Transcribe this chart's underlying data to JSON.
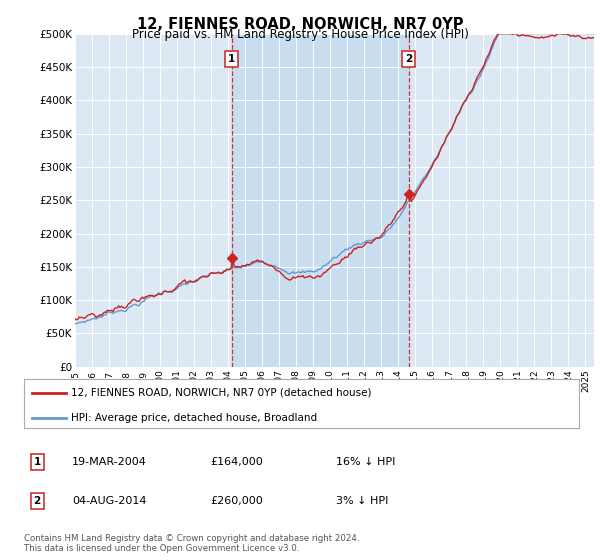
{
  "title": "12, FIENNES ROAD, NORWICH, NR7 0YP",
  "subtitle": "Price paid vs. HM Land Registry's House Price Index (HPI)",
  "plot_bg_color": "#dce9f5",
  "highlight_bg_color": "#c8ddf0",
  "ylim": [
    0,
    500000
  ],
  "yticks": [
    0,
    50000,
    100000,
    150000,
    200000,
    250000,
    300000,
    350000,
    400000,
    450000,
    500000
  ],
  "ytick_labels": [
    "£0",
    "£50K",
    "£100K",
    "£150K",
    "£200K",
    "£250K",
    "£300K",
    "£350K",
    "£400K",
    "£450K",
    "£500K"
  ],
  "sale1_x": 2004.21,
  "sale1_price": 164000,
  "sale2_x": 2014.6,
  "sale2_price": 260000,
  "legend_line1": "12, FIENNES ROAD, NORWICH, NR7 0YP (detached house)",
  "legend_line2": "HPI: Average price, detached house, Broadland",
  "footer": "Contains HM Land Registry data © Crown copyright and database right 2024.\nThis data is licensed under the Open Government Licence v3.0.",
  "hpi_color": "#6699cc",
  "price_color": "#cc2222",
  "dashed_line_color": "#cc3333",
  "table_row1": [
    "1",
    "19-MAR-2004",
    "£164,000",
    "16% ↓ HPI"
  ],
  "table_row2": [
    "2",
    "04-AUG-2014",
    "£260,000",
    "3% ↓ HPI"
  ],
  "xmin": 1995,
  "xmax": 2025.5
}
